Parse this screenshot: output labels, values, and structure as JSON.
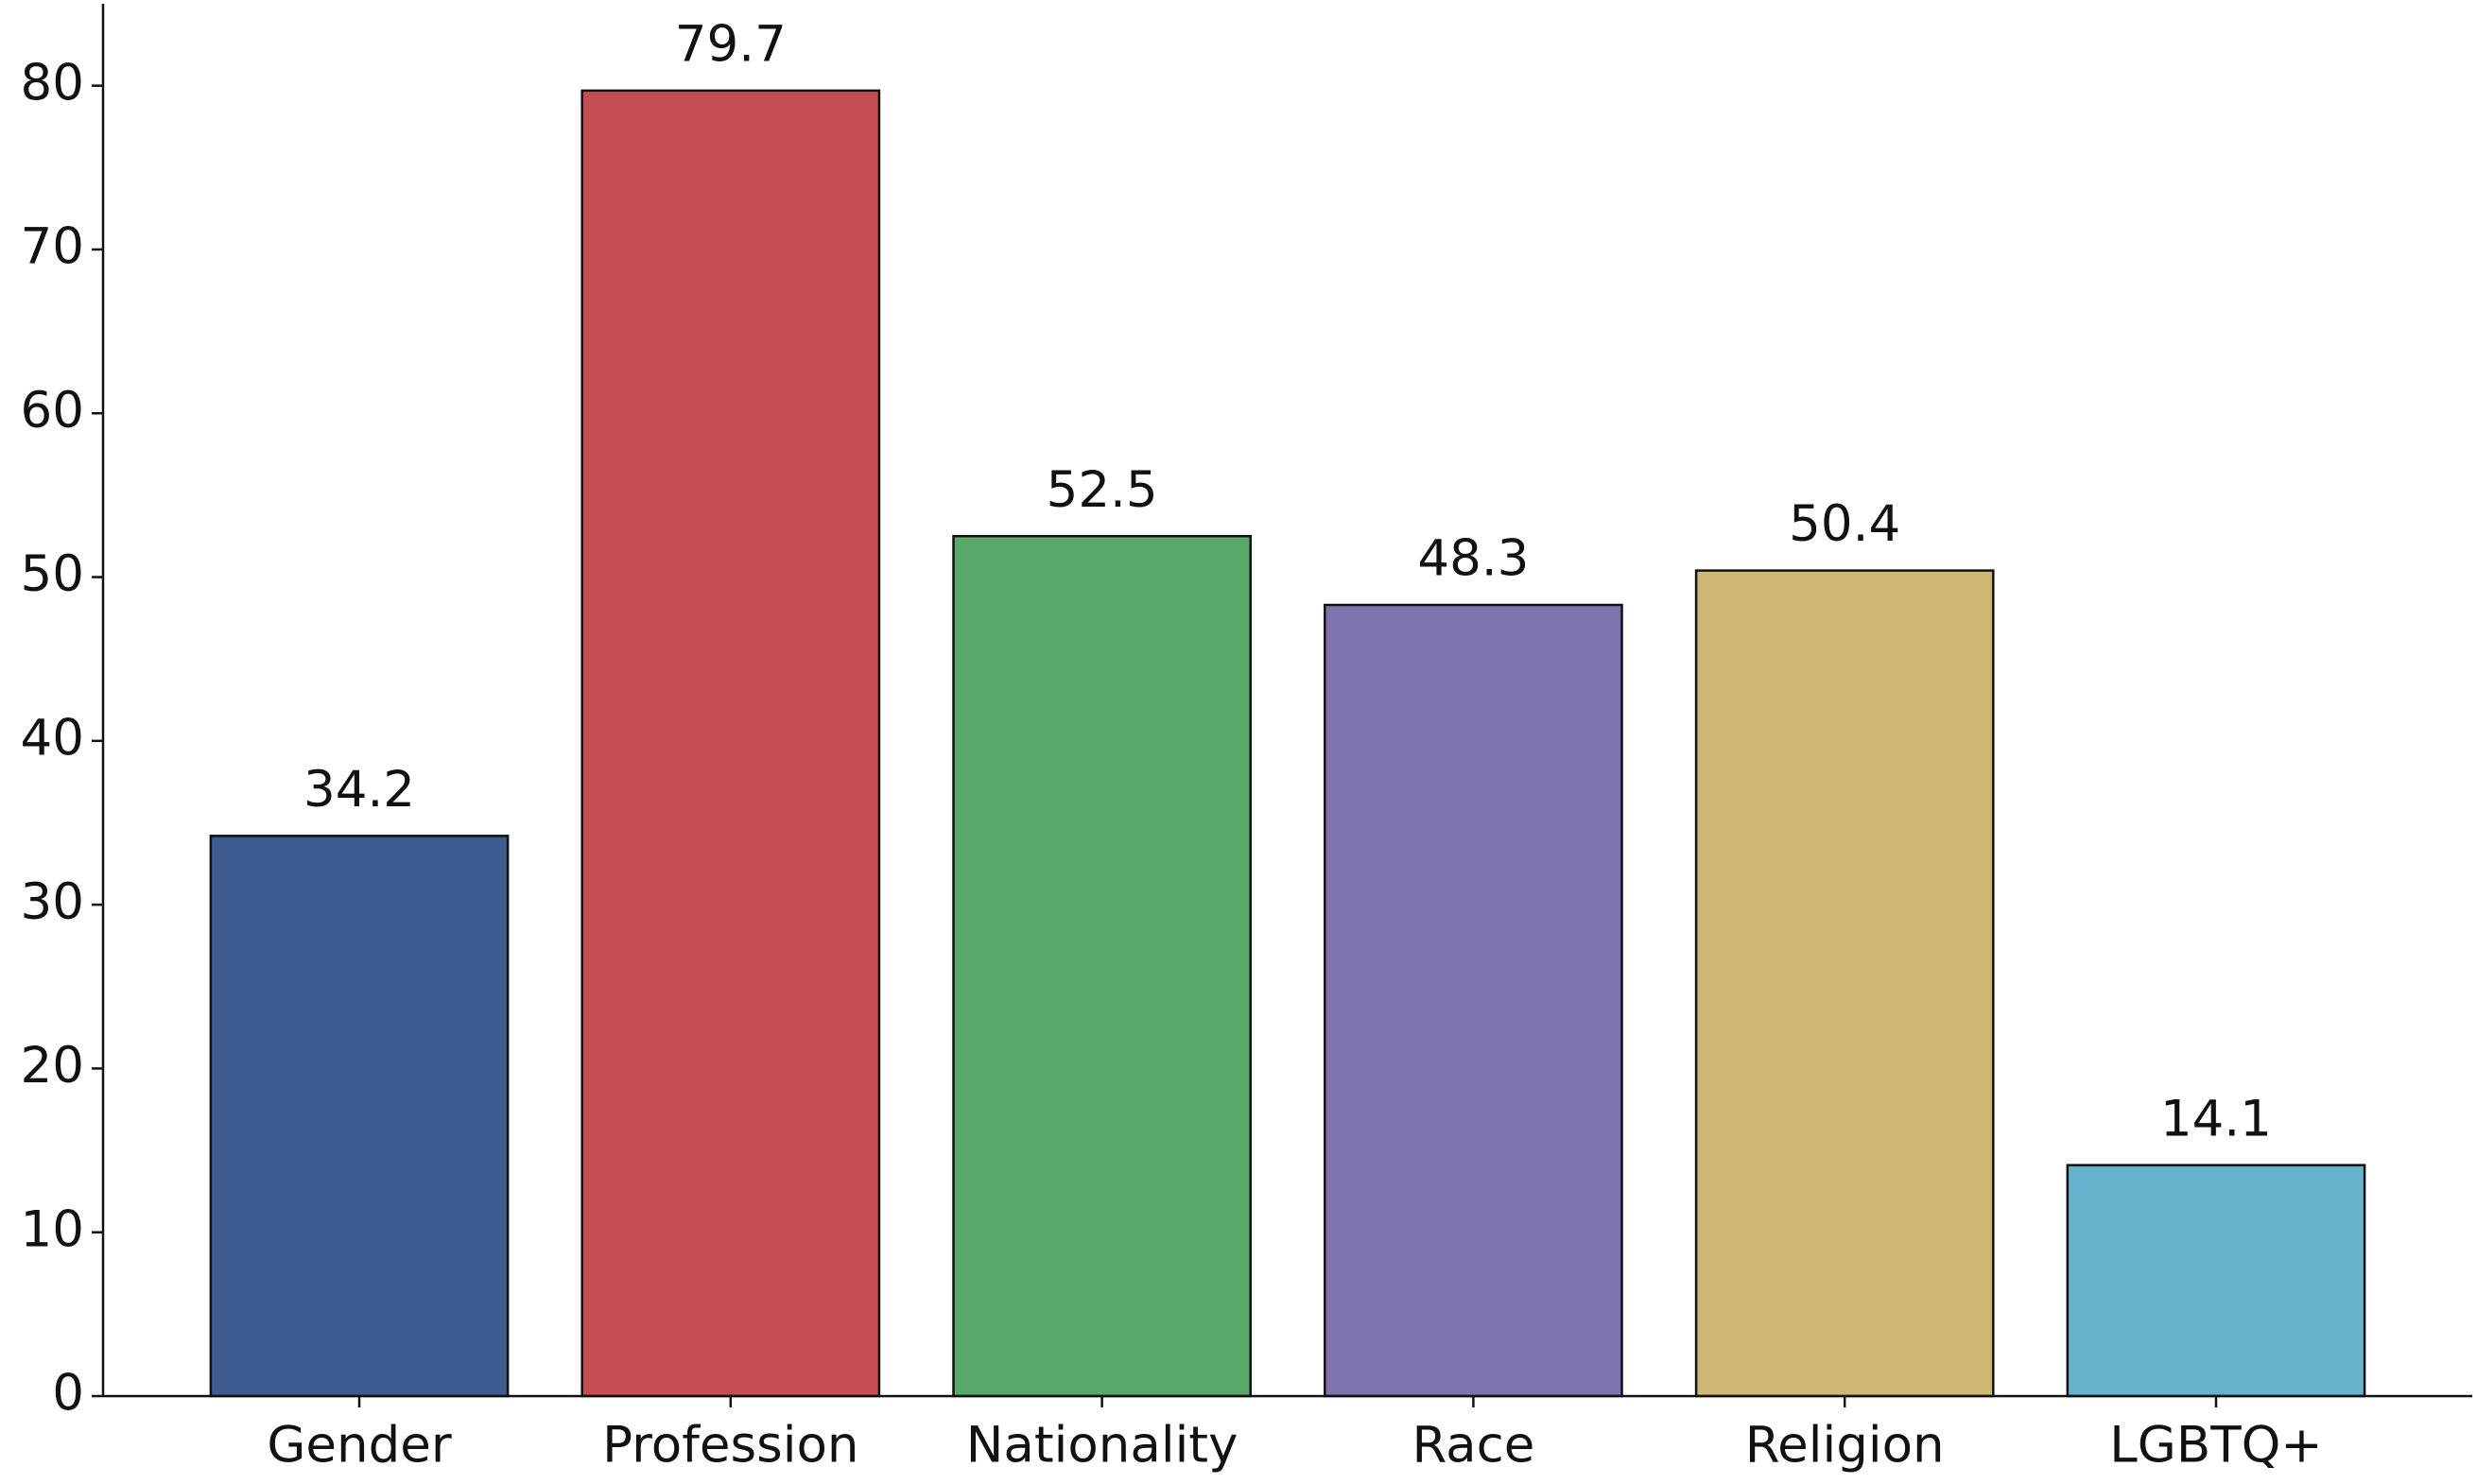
{
  "chart_data": {
    "type": "bar",
    "categories": [
      "Gender",
      "Profession",
      "Nationality",
      "Race",
      "Religion",
      "LGBTQ+"
    ],
    "values": [
      34.2,
      79.7,
      52.5,
      48.3,
      50.4,
      14.1
    ],
    "colors": [
      "#3d5b8f",
      "#c44e52",
      "#5aa869",
      "#8173b0",
      "#ccb874",
      "#65b3cd"
    ],
    "ylim": [
      0,
      85
    ],
    "yticks": [
      0,
      10,
      20,
      30,
      40,
      50,
      60,
      70,
      80
    ],
    "grid": false
  }
}
